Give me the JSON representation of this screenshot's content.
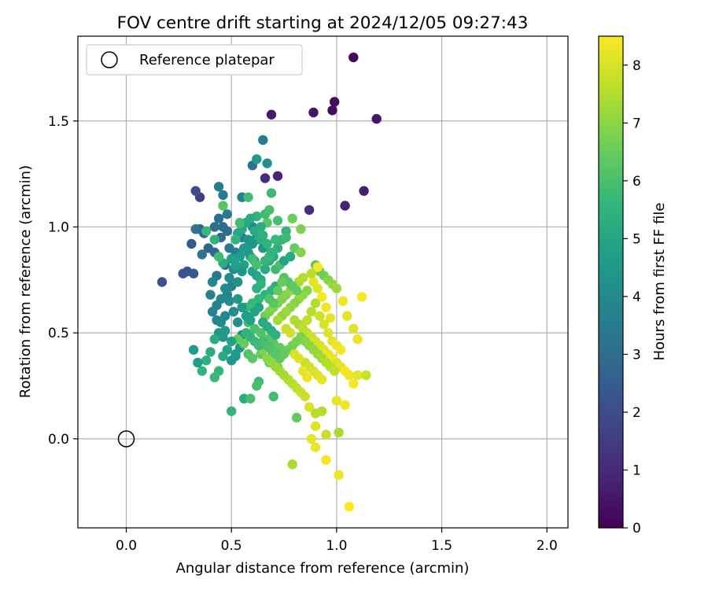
{
  "chart_data": {
    "type": "scatter",
    "title": "FOV centre drift starting at 2024/12/05 09:27:43",
    "xlabel": "Angular distance from reference (arcmin)",
    "ylabel": "Rotation from reference (arcmin)",
    "xlim": [
      -0.23,
      2.1
    ],
    "ylim": [
      -0.42,
      1.9
    ],
    "xticks": [
      0.0,
      0.5,
      1.0,
      1.5,
      2.0
    ],
    "xtick_labels": [
      "0.0",
      "0.5",
      "1.0",
      "1.5",
      "2.0"
    ],
    "yticks": [
      0.0,
      0.5,
      1.0,
      1.5
    ],
    "ytick_labels": [
      "0.0",
      "0.5",
      "1.0",
      "1.5"
    ],
    "grid": true,
    "legend": {
      "placement": "top-left",
      "entries": [
        "Reference platepar"
      ]
    },
    "reference_point": {
      "x": 0.0,
      "y": 0.0,
      "marker": "open-circle",
      "color": "#000000"
    },
    "colorbar": {
      "label": "Hours from first FF file",
      "range": [
        0,
        8.5
      ],
      "ticks": [
        0,
        1,
        2,
        3,
        4,
        5,
        6,
        7,
        8
      ],
      "tick_labels": [
        "0",
        "1",
        "2",
        "3",
        "4",
        "5",
        "6",
        "7",
        "8"
      ],
      "colormap": "viridis",
      "stops": [
        "#440154",
        "#482878",
        "#3e4989",
        "#31688e",
        "#26828e",
        "#1f9e89",
        "#35b779",
        "#6ece58",
        "#b5de2b",
        "#fde725"
      ]
    },
    "points": [
      [
        1.08,
        1.8,
        0.1
      ],
      [
        0.99,
        1.59,
        0.2
      ],
      [
        0.98,
        1.55,
        0.3
      ],
      [
        0.89,
        1.54,
        0.4
      ],
      [
        1.19,
        1.51,
        0.5
      ],
      [
        0.69,
        1.53,
        0.6
      ],
      [
        1.13,
        1.17,
        0.7
      ],
      [
        1.04,
        1.1,
        0.8
      ],
      [
        0.72,
        1.24,
        0.9
      ],
      [
        0.66,
        1.23,
        1.0
      ],
      [
        0.87,
        1.08,
        1.1
      ],
      [
        0.35,
        1.14,
        1.6
      ],
      [
        0.33,
        1.17,
        2.0
      ],
      [
        0.17,
        0.74,
        2.1
      ],
      [
        0.27,
        0.78,
        2.2
      ],
      [
        0.29,
        0.79,
        2.3
      ],
      [
        0.32,
        0.78,
        2.4
      ],
      [
        0.31,
        0.92,
        2.4
      ],
      [
        0.35,
        0.99,
        2.5
      ],
      [
        0.37,
        0.97,
        2.6
      ],
      [
        0.39,
        0.9,
        2.7
      ],
      [
        0.42,
        0.88,
        2.8
      ],
      [
        0.45,
        0.95,
        2.9
      ],
      [
        0.48,
        0.98,
        3.0
      ],
      [
        0.46,
        1.0,
        3.0
      ],
      [
        0.44,
        1.04,
        3.1
      ],
      [
        0.42,
        1.0,
        3.1
      ],
      [
        0.36,
        0.87,
        3.2
      ],
      [
        0.33,
        0.99,
        3.2
      ],
      [
        0.43,
        0.77,
        3.3
      ],
      [
        0.47,
        0.82,
        3.3
      ],
      [
        0.49,
        0.9,
        3.4
      ],
      [
        0.48,
        1.06,
        3.4
      ],
      [
        0.46,
        1.15,
        3.5
      ],
      [
        0.44,
        1.19,
        3.5
      ],
      [
        0.55,
        1.14,
        3.6
      ],
      [
        0.55,
        0.95,
        3.6
      ],
      [
        0.52,
        0.88,
        3.7
      ],
      [
        0.5,
        0.72,
        3.7
      ],
      [
        0.48,
        0.68,
        3.8
      ],
      [
        0.4,
        0.68,
        3.8
      ],
      [
        0.41,
        0.74,
        3.9
      ],
      [
        0.43,
        0.56,
        3.9
      ],
      [
        0.45,
        0.55,
        4.0
      ],
      [
        0.47,
        0.58,
        4.0
      ],
      [
        0.49,
        0.65,
        4.1
      ],
      [
        0.51,
        0.6,
        4.1
      ],
      [
        0.53,
        0.55,
        4.2
      ],
      [
        0.55,
        0.49,
        4.2
      ],
      [
        0.54,
        0.43,
        4.3
      ],
      [
        0.52,
        0.39,
        4.3
      ],
      [
        0.5,
        0.37,
        4.4
      ],
      [
        0.46,
        0.48,
        4.4
      ],
      [
        0.44,
        0.5,
        4.5
      ],
      [
        0.47,
        0.51,
        4.5
      ],
      [
        0.6,
        1.29,
        3.2
      ],
      [
        0.65,
        1.41,
        3.5
      ],
      [
        0.62,
        1.32,
        4.6
      ],
      [
        0.67,
        1.3,
        4.2
      ],
      [
        0.6,
        1.0,
        4.0
      ],
      [
        0.62,
        0.95,
        4.3
      ],
      [
        0.65,
        0.9,
        4.5
      ],
      [
        0.58,
        0.88,
        4.6
      ],
      [
        0.56,
        0.82,
        4.8
      ],
      [
        0.6,
        0.79,
        4.9
      ],
      [
        0.62,
        0.77,
        5.0
      ],
      [
        0.64,
        0.75,
        5.1
      ],
      [
        0.66,
        0.8,
        5.2
      ],
      [
        0.68,
        0.84,
        5.3
      ],
      [
        0.7,
        0.86,
        5.2
      ],
      [
        0.72,
        0.9,
        5.4
      ],
      [
        0.74,
        0.94,
        5.5
      ],
      [
        0.76,
        0.98,
        5.6
      ],
      [
        0.71,
        0.72,
        5.3
      ],
      [
        0.69,
        0.7,
        5.4
      ],
      [
        0.66,
        0.68,
        5.5
      ],
      [
        0.63,
        0.66,
        5.6
      ],
      [
        0.6,
        0.64,
        5.7
      ],
      [
        0.57,
        0.62,
        5.8
      ],
      [
        0.58,
        0.55,
        5.9
      ],
      [
        0.61,
        0.52,
        6.0
      ],
      [
        0.64,
        0.5,
        6.1
      ],
      [
        0.67,
        0.47,
        6.2
      ],
      [
        0.7,
        0.45,
        6.3
      ],
      [
        0.73,
        0.43,
        6.4
      ],
      [
        0.56,
        0.45,
        6.5
      ],
      [
        0.53,
        0.47,
        6.4
      ],
      [
        0.58,
        0.4,
        6.2
      ],
      [
        0.6,
        0.38,
        6.3
      ],
      [
        0.64,
        0.4,
        6.5
      ],
      [
        0.68,
        0.36,
        6.6
      ],
      [
        0.72,
        0.34,
        6.7
      ],
      [
        0.63,
        0.27,
        5.8
      ],
      [
        0.62,
        0.25,
        6.0
      ],
      [
        0.56,
        0.19,
        5.2
      ],
      [
        0.59,
        0.19,
        6.0
      ],
      [
        0.5,
        0.13,
        5.6
      ],
      [
        0.7,
        0.2,
        5.9
      ],
      [
        0.81,
        0.1,
        6.4
      ],
      [
        0.58,
        1.14,
        5.9
      ],
      [
        0.69,
        1.16,
        5.8
      ],
      [
        0.62,
        1.05,
        5.6
      ],
      [
        0.67,
        1.02,
        6.2
      ],
      [
        0.72,
        1.03,
        6.0
      ],
      [
        0.76,
        0.95,
        5.8
      ],
      [
        0.8,
        0.9,
        6.5
      ],
      [
        0.83,
        0.88,
        6.9
      ],
      [
        0.79,
        1.04,
        6.6
      ],
      [
        0.83,
        0.99,
        6.8
      ],
      [
        0.9,
        0.82,
        6.3
      ],
      [
        0.92,
        0.79,
        6.5
      ],
      [
        0.94,
        0.77,
        6.6
      ],
      [
        0.96,
        0.75,
        6.9
      ],
      [
        0.98,
        0.73,
        7.1
      ],
      [
        1.0,
        0.71,
        7.2
      ],
      [
        0.86,
        0.7,
        6.9
      ],
      [
        0.84,
        0.68,
        7.0
      ],
      [
        0.82,
        0.66,
        7.1
      ],
      [
        0.8,
        0.64,
        6.9
      ],
      [
        0.78,
        0.62,
        7.0
      ],
      [
        0.76,
        0.6,
        7.2
      ],
      [
        0.74,
        0.58,
        7.1
      ],
      [
        0.72,
        0.56,
        7.3
      ],
      [
        0.8,
        0.56,
        7.5
      ],
      [
        0.82,
        0.54,
        7.4
      ],
      [
        0.84,
        0.52,
        7.6
      ],
      [
        0.86,
        0.5,
        7.7
      ],
      [
        0.88,
        0.48,
        7.8
      ],
      [
        0.9,
        0.46,
        7.9
      ],
      [
        0.92,
        0.44,
        8.0
      ],
      [
        0.94,
        0.42,
        8.1
      ],
      [
        0.96,
        0.4,
        8.2
      ],
      [
        0.98,
        0.38,
        8.3
      ],
      [
        1.0,
        0.36,
        8.1
      ],
      [
        1.02,
        0.34,
        8.2
      ],
      [
        1.04,
        0.32,
        8.4
      ],
      [
        1.06,
        0.3,
        8.3
      ],
      [
        0.97,
        0.57,
        8.2
      ],
      [
        0.95,
        0.62,
        8.3
      ],
      [
        0.93,
        0.67,
        8.4
      ],
      [
        0.91,
        0.71,
        8.1
      ],
      [
        0.89,
        0.74,
        8.2
      ],
      [
        0.91,
        0.81,
        8.4
      ],
      [
        1.03,
        0.65,
        8.3
      ],
      [
        1.05,
        0.58,
        8.2
      ],
      [
        1.08,
        0.52,
        8.1
      ],
      [
        1.1,
        0.47,
        8.3
      ],
      [
        1.12,
        0.67,
        8.4
      ],
      [
        1.0,
        0.18,
        8.2
      ],
      [
        1.04,
        0.16,
        8.3
      ],
      [
        1.08,
        0.26,
        8.4
      ],
      [
        1.1,
        0.3,
        8.2
      ],
      [
        1.14,
        0.3,
        7.8
      ],
      [
        0.9,
        0.06,
        8.1
      ],
      [
        0.88,
        0.0,
        8.2
      ],
      [
        0.9,
        -0.04,
        8.3
      ],
      [
        0.95,
        -0.1,
        8.4
      ],
      [
        1.01,
        -0.17,
        8.3
      ],
      [
        1.06,
        -0.32,
        8.5
      ],
      [
        0.79,
        -0.12,
        7.4
      ],
      [
        0.95,
        0.02,
        7.8
      ],
      [
        1.01,
        0.03,
        7.4
      ],
      [
        0.93,
        0.13,
        7.5
      ],
      [
        0.9,
        0.12,
        7.6
      ],
      [
        0.87,
        0.15,
        8.0
      ],
      [
        0.85,
        0.2,
        7.9
      ],
      [
        0.83,
        0.22,
        7.8
      ],
      [
        0.81,
        0.24,
        7.7
      ],
      [
        0.79,
        0.26,
        7.6
      ],
      [
        0.77,
        0.28,
        7.5
      ],
      [
        0.75,
        0.3,
        7.4
      ],
      [
        0.73,
        0.32,
        7.3
      ],
      [
        0.71,
        0.34,
        7.2
      ],
      [
        0.69,
        0.36,
        7.1
      ],
      [
        0.67,
        0.38,
        7.0
      ],
      [
        0.65,
        0.42,
        6.8
      ],
      [
        0.66,
        0.58,
        6.6
      ],
      [
        0.68,
        0.6,
        6.8
      ],
      [
        0.7,
        0.62,
        6.9
      ],
      [
        0.72,
        0.64,
        6.7
      ],
      [
        0.74,
        0.66,
        6.8
      ],
      [
        0.76,
        0.68,
        6.9
      ],
      [
        0.78,
        0.7,
        7.1
      ],
      [
        0.8,
        0.72,
        7.3
      ],
      [
        0.82,
        0.74,
        7.4
      ],
      [
        0.84,
        0.76,
        7.5
      ],
      [
        0.88,
        0.78,
        7.6
      ],
      [
        0.52,
        0.4,
        4.7
      ],
      [
        0.5,
        0.46,
        4.9
      ],
      [
        0.48,
        0.42,
        5.0
      ],
      [
        0.46,
        0.39,
        5.1
      ],
      [
        0.42,
        0.47,
        5.2
      ],
      [
        0.4,
        0.41,
        5.3
      ],
      [
        0.38,
        0.37,
        5.4
      ],
      [
        0.36,
        0.32,
        5.5
      ],
      [
        0.44,
        0.32,
        5.6
      ],
      [
        0.42,
        0.29,
        5.7
      ],
      [
        0.32,
        0.42,
        4.6
      ],
      [
        0.34,
        0.36,
        4.7
      ],
      [
        0.62,
        0.71,
        5.4
      ],
      [
        0.64,
        0.73,
        5.5
      ],
      [
        0.66,
        0.84,
        5.6
      ],
      [
        0.68,
        0.86,
        5.7
      ],
      [
        0.71,
        0.8,
        5.8
      ],
      [
        0.73,
        0.82,
        6.0
      ],
      [
        0.75,
        0.76,
        6.1
      ],
      [
        0.77,
        0.74,
        6.2
      ],
      [
        0.79,
        0.72,
        6.3
      ],
      [
        0.81,
        0.7,
        6.4
      ],
      [
        0.57,
        1.02,
        5.0
      ],
      [
        0.59,
        1.04,
        5.1
      ],
      [
        0.61,
        0.98,
        5.2
      ],
      [
        0.63,
        0.94,
        5.3
      ],
      [
        0.65,
        0.96,
        5.4
      ],
      [
        0.67,
        0.92,
        5.5
      ],
      [
        0.69,
        0.88,
        5.6
      ],
      [
        0.71,
        0.94,
        5.7
      ],
      [
        0.59,
        0.86,
        4.7
      ],
      [
        0.61,
        0.84,
        4.8
      ],
      [
        0.55,
        0.79,
        4.4
      ],
      [
        0.53,
        0.74,
        4.3
      ],
      [
        0.51,
        0.8,
        4.2
      ],
      [
        0.49,
        0.76,
        4.1
      ],
      [
        0.47,
        0.71,
        4.0
      ],
      [
        0.45,
        0.66,
        3.9
      ],
      [
        0.43,
        0.63,
        3.8
      ],
      [
        0.41,
        0.6,
        3.7
      ],
      [
        0.53,
        0.66,
        4.5
      ],
      [
        0.55,
        0.62,
        4.6
      ],
      [
        0.57,
        0.58,
        4.7
      ],
      [
        0.59,
        0.56,
        4.8
      ],
      [
        0.61,
        0.6,
        4.9
      ],
      [
        0.63,
        0.62,
        5.0
      ],
      [
        0.65,
        0.55,
        5.1
      ],
      [
        0.67,
        0.53,
        5.2
      ],
      [
        0.69,
        0.51,
        5.3
      ],
      [
        0.71,
        0.49,
        5.4
      ],
      [
        0.57,
        0.5,
        5.5
      ],
      [
        0.59,
        0.48,
        5.6
      ],
      [
        0.61,
        0.46,
        5.7
      ],
      [
        0.63,
        0.44,
        5.8
      ],
      [
        0.65,
        0.46,
        5.9
      ],
      [
        0.67,
        0.44,
        6.0
      ],
      [
        0.69,
        0.42,
        6.1
      ],
      [
        0.71,
        0.4,
        6.2
      ],
      [
        0.73,
        0.38,
        6.3
      ],
      [
        0.75,
        0.4,
        6.4
      ],
      [
        0.77,
        0.42,
        6.5
      ],
      [
        0.79,
        0.44,
        6.6
      ],
      [
        0.81,
        0.46,
        6.7
      ],
      [
        0.83,
        0.48,
        6.8
      ],
      [
        0.85,
        0.46,
        6.9
      ],
      [
        0.87,
        0.44,
        7.0
      ],
      [
        0.89,
        0.42,
        7.1
      ],
      [
        0.91,
        0.4,
        7.2
      ],
      [
        0.93,
        0.38,
        7.3
      ],
      [
        0.95,
        0.36,
        7.5
      ],
      [
        0.97,
        0.34,
        7.6
      ],
      [
        0.99,
        0.32,
        7.7
      ],
      [
        0.85,
        0.36,
        7.8
      ],
      [
        0.87,
        0.34,
        7.9
      ],
      [
        0.89,
        0.32,
        8.0
      ],
      [
        0.91,
        0.3,
        8.1
      ],
      [
        0.93,
        0.28,
        8.2
      ],
      [
        0.86,
        0.29,
        8.3
      ],
      [
        0.84,
        0.32,
        8.2
      ],
      [
        0.82,
        0.38,
        8.1
      ],
      [
        0.8,
        0.4,
        8.0
      ],
      [
        0.78,
        0.5,
        7.9
      ],
      [
        0.76,
        0.52,
        7.8
      ],
      [
        0.86,
        0.56,
        7.7
      ],
      [
        0.88,
        0.6,
        7.6
      ],
      [
        0.9,
        0.64,
        7.5
      ],
      [
        0.92,
        0.58,
        7.9
      ],
      [
        0.94,
        0.54,
        8.0
      ],
      [
        0.96,
        0.5,
        8.1
      ],
      [
        0.98,
        0.46,
        8.2
      ],
      [
        1.0,
        0.44,
        8.3
      ],
      [
        1.02,
        0.42,
        8.4
      ],
      [
        0.75,
        0.84,
        5.0
      ],
      [
        0.78,
        0.86,
        5.2
      ],
      [
        0.6,
        0.92,
        4.4
      ],
      [
        0.58,
        0.94,
        4.5
      ],
      [
        0.56,
        0.9,
        4.6
      ],
      [
        0.54,
        0.86,
        4.7
      ],
      [
        0.52,
        0.82,
        4.8
      ],
      [
        0.5,
        0.85,
        4.9
      ],
      [
        0.53,
        0.97,
        5.0
      ],
      [
        0.55,
        0.99,
        5.1
      ],
      [
        0.64,
        1.0,
        5.3
      ],
      [
        0.66,
        1.06,
        5.8
      ],
      [
        0.68,
        1.08,
        6.0
      ],
      [
        0.54,
        1.02,
        5.9
      ],
      [
        0.52,
        0.94,
        5.6
      ],
      [
        0.46,
        0.83,
        5.3
      ],
      [
        0.44,
        0.86,
        5.8
      ],
      [
        0.42,
        0.94,
        5.5
      ],
      [
        0.38,
        0.98,
        5.7
      ],
      [
        0.46,
        1.1,
        6.2
      ],
      [
        0.6,
        0.85,
        5.9
      ],
      [
        0.62,
        0.82,
        6.0
      ],
      [
        0.74,
        0.74,
        6.5
      ],
      [
        0.72,
        0.7,
        6.4
      ],
      [
        0.7,
        0.64,
        6.3
      ],
      [
        0.68,
        0.66,
        6.2
      ]
    ]
  }
}
